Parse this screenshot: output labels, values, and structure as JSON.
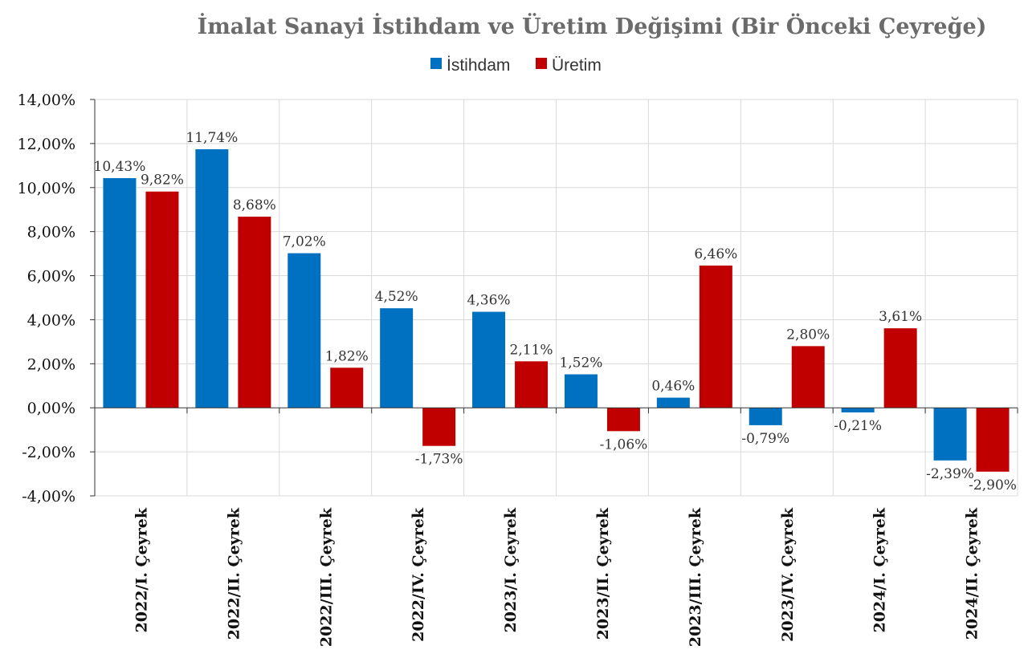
{
  "chart_data": {
    "type": "bar",
    "title": "İmalat Sanayi İstihdam ve Üretim Değişimi (Bir Önceki Çeyreğe)",
    "xlabel": "",
    "ylabel": "",
    "ylim": [
      -4,
      14
    ],
    "ytick_values": [
      -4,
      -2,
      0,
      2,
      4,
      6,
      8,
      10,
      12,
      14
    ],
    "ytick_labels": [
      "-4,00%",
      "-2,00%",
      "0,00%",
      "2,00%",
      "4,00%",
      "6,00%",
      "8,00%",
      "10,00%",
      "12,00%",
      "14,00%"
    ],
    "grid": true,
    "legend_position": "top-center",
    "categories": [
      "2022/I. Çeyrek",
      "2022/II. Çeyrek",
      "2022/III. Çeyrek",
      "2022/IV. Çeyrek",
      "2023/I. Çeyrek",
      "2023/II. Çeyrek",
      "2023/III. Çeyrek",
      "2023/IV. Çeyrek",
      "2024/I. Çeyrek",
      "2024/II. Çeyrek"
    ],
    "series": [
      {
        "name": "İstihdam",
        "color": "#0070c0",
        "values": [
          10.43,
          11.74,
          7.02,
          4.52,
          4.36,
          1.52,
          0.46,
          -0.79,
          -0.21,
          -2.39
        ],
        "labels": [
          "10,43%",
          "11,74%",
          "7,02%",
          "4,52%",
          "4,36%",
          "1,52%",
          "0,46%",
          "-0,79%",
          "-0,21%",
          "-2,39%"
        ]
      },
      {
        "name": "Üretim",
        "color": "#c00000",
        "values": [
          9.82,
          8.68,
          1.82,
          -1.73,
          2.11,
          -1.06,
          6.46,
          2.8,
          3.61,
          -2.9
        ],
        "labels": [
          "9,82%",
          "8,68%",
          "1,82%",
          "-1,73%",
          "2,11%",
          "-1,06%",
          "6,46%",
          "2,80%",
          "3,61%",
          "-2,90%"
        ]
      }
    ]
  }
}
